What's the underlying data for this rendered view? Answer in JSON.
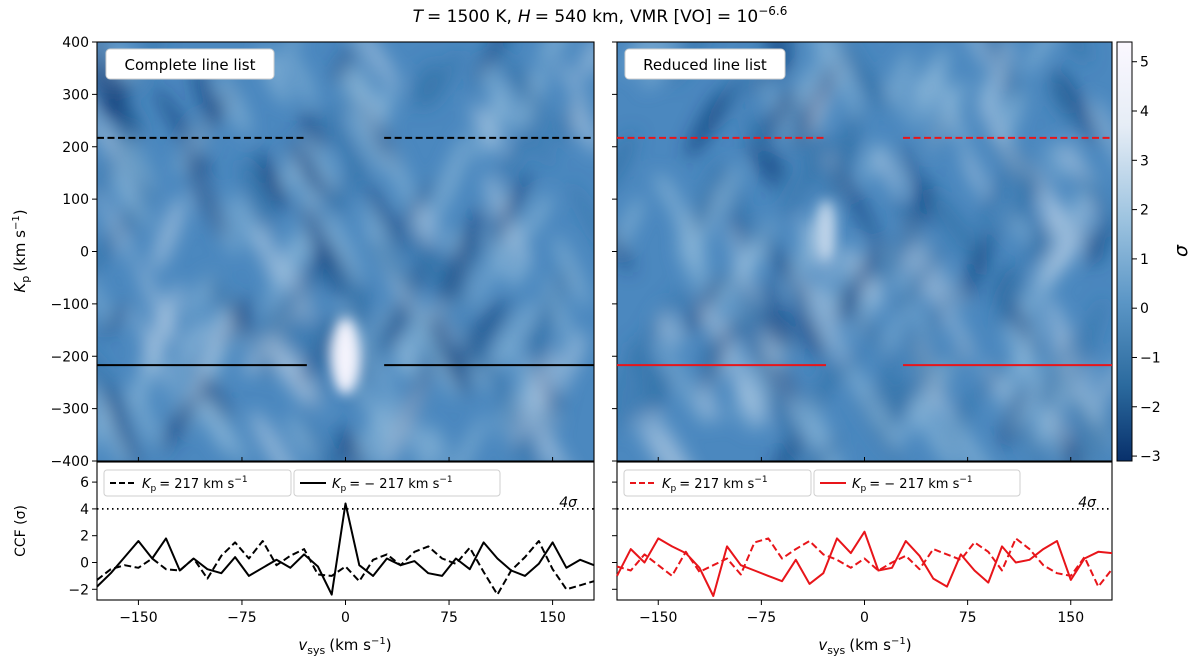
{
  "figure": {
    "title_T": "T",
    "title_T_value": "= 1500 K,",
    "title_H": "H",
    "title_H_value": "= 540 km,",
    "title_vmr": "VMR [VO] = 10",
    "title_vmr_exp": "−6.6"
  },
  "colorbar": {
    "label": "σ",
    "ticks": [
      "5",
      "4",
      "3",
      "2",
      "1",
      "0",
      "−1",
      "−2",
      "−3"
    ],
    "tick_values": [
      5,
      4,
      3,
      2,
      1,
      0,
      -1,
      -2,
      -3
    ],
    "range": [
      -3.1,
      5.4
    ],
    "colors": [
      "#08306b",
      "#2b6a9e",
      "#5b96c6",
      "#9ec4e0",
      "#e6edf6",
      "#fbf8ff"
    ]
  },
  "axes": {
    "kp_label_main": "K",
    "kp_label_sub": "p",
    "kp_label_units": "(km s",
    "kp_label_exp": "−1",
    "kp_label_close": ")",
    "kp_ticks": [
      "400",
      "300",
      "200",
      "100",
      "0",
      "−100",
      "−200",
      "−300",
      "−400"
    ],
    "kp_tick_values": [
      400,
      300,
      200,
      100,
      0,
      -100,
      -200,
      -300,
      -400
    ],
    "ccf_label": "CCF (σ)",
    "ccf_ticks": [
      "6",
      "4",
      "2",
      "0",
      "−2"
    ],
    "ccf_tick_values": [
      6,
      4,
      2,
      0,
      -2
    ],
    "vsys_label_main": "v",
    "vsys_label_sub": "sys",
    "vsys_label_units": "(km s",
    "vsys_label_exp": "−1",
    "vsys_label_close": ")",
    "vsys_ticks": [
      "−150",
      "−75",
      "0",
      "75",
      "150"
    ],
    "vsys_tick_values": [
      -150,
      -75,
      0,
      75,
      150
    ],
    "threshold_label": "4σ"
  },
  "panels": [
    {
      "id": "complete",
      "box_label": "Complete line list",
      "line_color": "#000000",
      "legend_dashed": "K",
      "legend_dashed_sub": "p",
      "legend_dashed_value": "= 217 km s",
      "legend_dashed_exp": "−1",
      "legend_solid": "K",
      "legend_solid_sub": "p",
      "legend_solid_value": "= − 217 km s",
      "legend_solid_exp": "−1"
    },
    {
      "id": "reduced",
      "box_label": "Reduced line list",
      "line_color": "#e8151a",
      "legend_dashed": "K",
      "legend_dashed_sub": "p",
      "legend_dashed_value": "= 217 km s",
      "legend_dashed_exp": "−1",
      "legend_solid": "K",
      "legend_solid_sub": "p",
      "legend_solid_value": "= − 217 km s",
      "legend_solid_exp": "−1"
    }
  ],
  "chart_data": [
    {
      "type": "heatmap",
      "title": "Complete line list",
      "xlabel": "v_sys (km s^-1)",
      "ylabel": "K_p (km s^-1)",
      "xlim": [
        -180,
        180
      ],
      "ylim": [
        -400,
        400
      ],
      "zlabel": "σ",
      "zlim": [
        -3.1,
        5.4
      ],
      "peak": {
        "vsys": 0,
        "kp": -200,
        "sigma": 5.4
      },
      "marker_lines": [
        {
          "kp": 217,
          "style": "dashed",
          "segments": [
            [
              -180,
              -28
            ],
            [
              28,
              180
            ]
          ]
        },
        {
          "kp": -217,
          "style": "solid",
          "segments": [
            [
              -180,
              -28
            ],
            [
              28,
              180
            ]
          ]
        }
      ]
    },
    {
      "type": "heatmap",
      "title": "Reduced line list",
      "xlabel": "v_sys (km s^-1)",
      "ylabel": "K_p (km s^-1)",
      "xlim": [
        -180,
        180
      ],
      "ylim": [
        -400,
        400
      ],
      "zlabel": "σ",
      "zlim": [
        -3.1,
        5.4
      ],
      "peak": {
        "vsys": -28,
        "kp": 40,
        "sigma": 3.2
      },
      "marker_lines": [
        {
          "kp": 217,
          "style": "dashed",
          "segments": [
            [
              -180,
              -28
            ],
            [
              28,
              180
            ]
          ]
        },
        {
          "kp": -217,
          "style": "solid",
          "segments": [
            [
              -180,
              -28
            ],
            [
              28,
              180
            ]
          ]
        }
      ]
    },
    {
      "type": "line",
      "title": "CCF — Complete line list",
      "xlabel": "v_sys (km s^-1)",
      "ylabel": "CCF (σ)",
      "xlim": [
        -180,
        180
      ],
      "ylim": [
        -2.8,
        7.5
      ],
      "threshold": 4,
      "x": [
        -180,
        -170,
        -160,
        -150,
        -140,
        -130,
        -120,
        -110,
        -100,
        -90,
        -80,
        -70,
        -60,
        -50,
        -40,
        -30,
        -20,
        -10,
        0,
        10,
        20,
        30,
        40,
        50,
        60,
        70,
        80,
        90,
        100,
        110,
        120,
        130,
        140,
        150,
        160,
        170,
        180
      ],
      "series": [
        {
          "name": "K_p = 217 km s^-1",
          "style": "dashed",
          "values": [
            -1.3,
            -0.5,
            -0.2,
            -0.4,
            0.3,
            -0.5,
            -0.6,
            0.3,
            -1.2,
            0.5,
            1.5,
            0.3,
            1.6,
            -0.2,
            0.5,
            1.0,
            -0.9,
            -1.0,
            -0.3,
            -1.4,
            0.2,
            0.6,
            -0.2,
            0.8,
            1.2,
            0.3,
            -0.1,
            1.1,
            -0.7,
            -2.4,
            -0.6,
            0.4,
            1.6,
            -0.5,
            -2.0,
            -1.7,
            -1.4
          ]
        },
        {
          "name": "K_p = −217 km s^-1",
          "style": "solid",
          "values": [
            -1.8,
            -0.8,
            0.4,
            1.6,
            0.3,
            1.8,
            -0.6,
            0.3,
            -0.5,
            -0.8,
            0.4,
            -1.0,
            -0.4,
            0.2,
            -0.4,
            0.6,
            -0.3,
            -2.4,
            4.4,
            -0.2,
            -1.0,
            0.3,
            -0.2,
            0.1,
            -0.8,
            -1.0,
            0.3,
            -0.5,
            1.5,
            0.3,
            -0.6,
            -1.0,
            -0.1,
            1.5,
            -0.4,
            0.2,
            -0.2
          ]
        }
      ]
    },
    {
      "type": "line",
      "title": "CCF — Reduced line list",
      "xlabel": "v_sys (km s^-1)",
      "ylabel": "CCF (σ)",
      "xlim": [
        -180,
        180
      ],
      "ylim": [
        -2.8,
        7.5
      ],
      "threshold": 4,
      "x": [
        -180,
        -170,
        -160,
        -150,
        -140,
        -130,
        -120,
        -110,
        -100,
        -90,
        -80,
        -70,
        -60,
        -50,
        -40,
        -30,
        -20,
        -10,
        0,
        10,
        20,
        30,
        40,
        50,
        60,
        70,
        80,
        90,
        100,
        110,
        120,
        130,
        140,
        150,
        160,
        170,
        180
      ],
      "series": [
        {
          "name": "K_p = 217 km s^-1",
          "style": "dashed",
          "values": [
            -0.3,
            -0.6,
            0.6,
            -0.2,
            -1.0,
            0.8,
            -0.7,
            -0.2,
            0.3,
            -0.9,
            1.5,
            1.8,
            0.3,
            1.0,
            1.6,
            0.6,
            0.2,
            -0.4,
            0.3,
            -0.6,
            0.0,
            0.5,
            -0.5,
            1.0,
            0.6,
            0.2,
            1.5,
            0.8,
            -0.6,
            1.8,
            1.0,
            -0.2,
            -0.8,
            -1.0,
            0.4,
            -1.8,
            -0.5
          ]
        },
        {
          "name": "K_p = −217 km s^-1",
          "style": "solid",
          "values": [
            -1.0,
            1.0,
            0.0,
            1.8,
            1.2,
            0.7,
            -0.4,
            -2.5,
            1.2,
            -0.2,
            -0.6,
            -1.0,
            -1.4,
            0.2,
            -1.6,
            -0.8,
            1.8,
            0.7,
            2.3,
            -0.6,
            -0.4,
            1.6,
            0.5,
            -1.2,
            -1.8,
            0.6,
            -0.6,
            -1.5,
            1.2,
            0.0,
            0.2,
            1.0,
            1.6,
            -1.3,
            0.3,
            0.8,
            0.7
          ]
        }
      ]
    }
  ]
}
